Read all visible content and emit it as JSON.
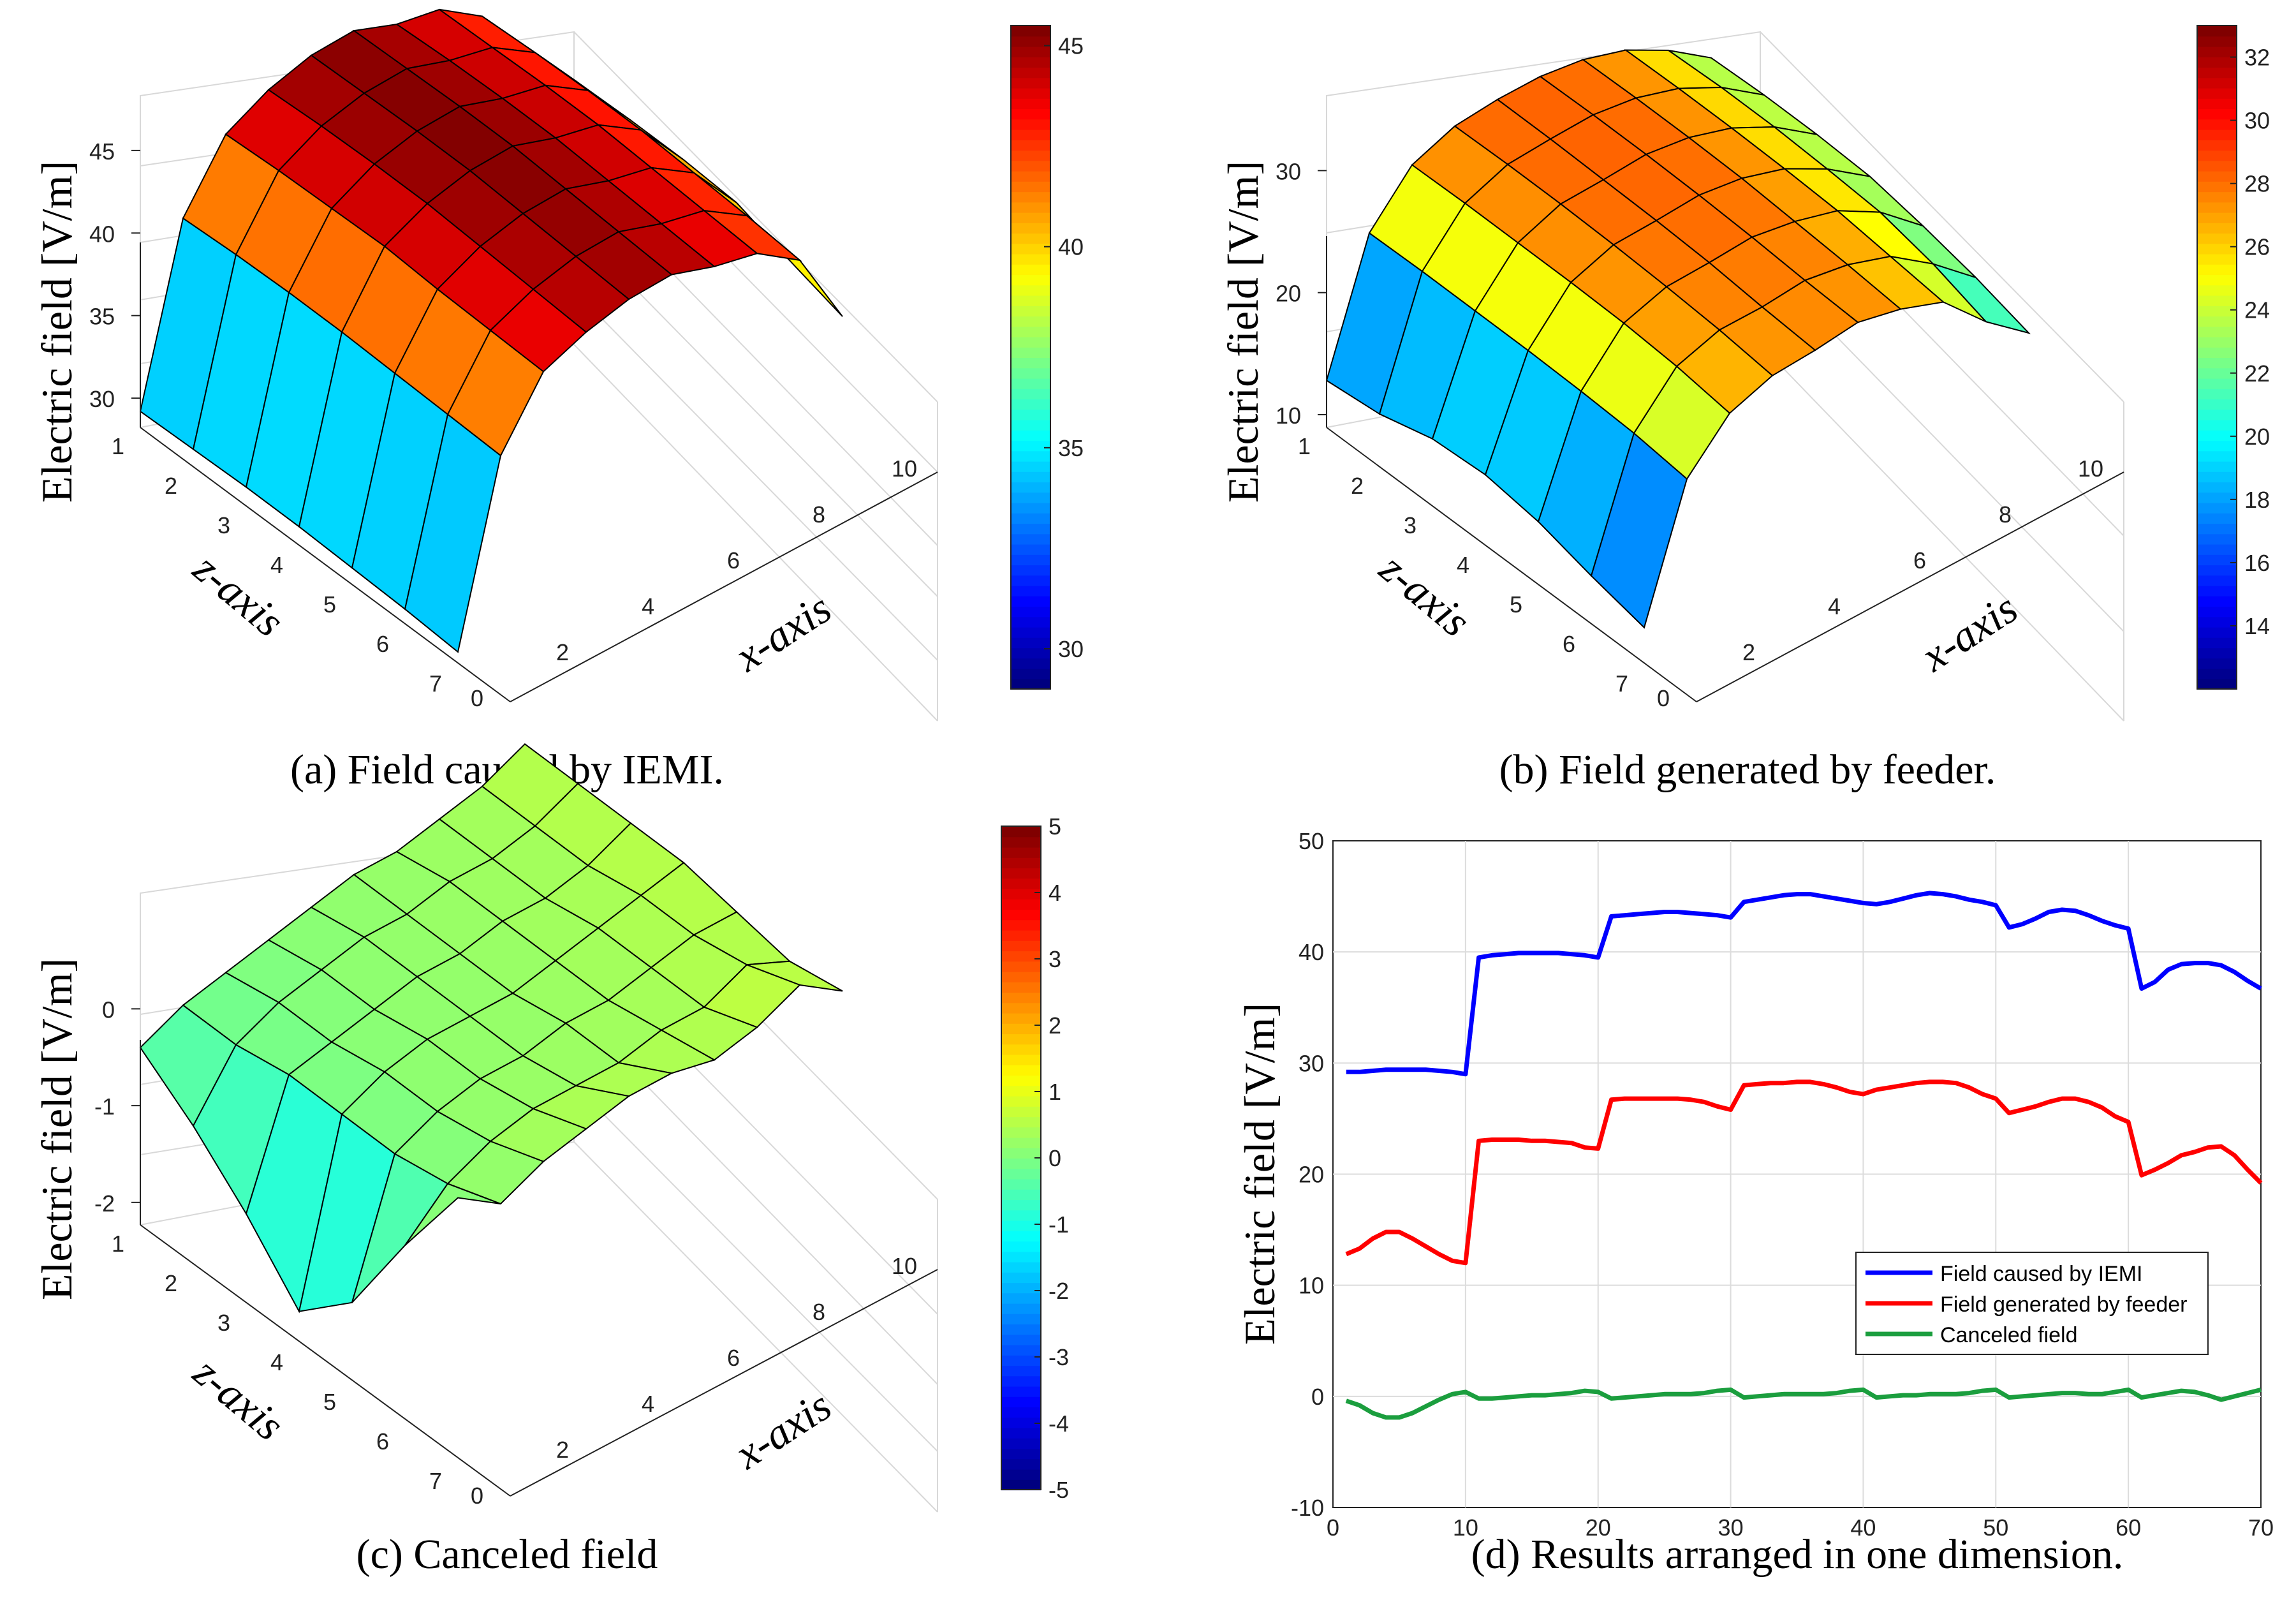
{
  "charts": [
    {
      "type": "surface",
      "title": "(a) Field caused by IEMI.",
      "zlabel": "Electric field [V/m]",
      "xlabel": "x-axis",
      "ylabel": "z-axis",
      "x_ticks": [
        "0",
        "2",
        "4",
        "6",
        "8",
        "10"
      ],
      "y_ticks": [
        "1",
        "2",
        "3",
        "4",
        "5",
        "6",
        "7"
      ],
      "z_ticks": [
        "30",
        "35",
        "40",
        "45"
      ],
      "zlim": [
        29,
        46
      ],
      "colorbar": {
        "min": 29,
        "max": 45.5,
        "colormap": "jet",
        "ticks": [
          "30",
          "35",
          "40",
          "45"
        ]
      },
      "grid": {
        "x": [
          1,
          2,
          3,
          4,
          5,
          6,
          7,
          8,
          9,
          10
        ],
        "z": [
          1,
          2,
          3,
          4,
          5,
          6,
          7
        ],
        "values": [
          [
            29.2,
            39.5,
            43.2,
            44.5,
            45.2,
            45.3,
            44.3,
            43.8,
            42.0,
            38.8
          ],
          [
            29.3,
            39.7,
            43.4,
            44.7,
            45.3,
            45.4,
            44.5,
            43.9,
            42.2,
            39.0
          ],
          [
            29.4,
            39.8,
            43.5,
            44.8,
            45.4,
            45.5,
            44.6,
            44.0,
            42.3,
            39.1
          ],
          [
            29.4,
            39.8,
            43.6,
            44.8,
            45.4,
            45.5,
            44.6,
            44.0,
            42.3,
            39.1
          ],
          [
            29.3,
            39.7,
            43.4,
            44.6,
            45.2,
            45.3,
            44.4,
            43.8,
            42.1,
            38.9
          ],
          [
            29.2,
            39.6,
            43.3,
            44.4,
            45.0,
            45.1,
            44.2,
            43.6,
            41.9,
            37.8
          ],
          [
            29.0,
            39.5,
            43.2,
            44.2,
            44.8,
            44.9,
            44.0,
            43.4,
            41.6,
            36.8
          ]
        ]
      }
    },
    {
      "type": "surface",
      "title": "(b) Field generated by feeder.",
      "zlabel": "Electric field [V/m]",
      "xlabel": "x-axis",
      "ylabel": "z-axis",
      "x_ticks": [
        "0",
        "2",
        "4",
        "6",
        "8",
        "10"
      ],
      "y_ticks": [
        "1",
        "2",
        "3",
        "4",
        "5",
        "6",
        "7"
      ],
      "z_ticks": [
        "10",
        "20",
        "30"
      ],
      "zlim": [
        10,
        33
      ],
      "colorbar": {
        "min": 12,
        "max": 33,
        "colormap": "jet",
        "ticks": [
          "14",
          "16",
          "18",
          "20",
          "22",
          "24",
          "26",
          "28",
          "30",
          "32"
        ]
      },
      "grid": {
        "x": [
          1,
          2,
          3,
          4,
          5,
          6,
          7,
          8,
          9,
          10
        ],
        "z": [
          1,
          2,
          3,
          4,
          5,
          6,
          7
        ],
        "values": [
          [
            12.8,
            23.0,
            26.7,
            28.0,
            28.3,
            28.3,
            27.8,
            26.7,
            24.8,
            22.3
          ],
          [
            13.3,
            23.1,
            26.8,
            28.1,
            28.3,
            28.4,
            27.9,
            26.8,
            25.0,
            22.5
          ],
          [
            14.5,
            23.1,
            26.8,
            28.1,
            28.2,
            28.4,
            27.9,
            26.8,
            25.0,
            22.5
          ],
          [
            14.8,
            23.1,
            26.8,
            28.0,
            28.1,
            28.3,
            27.8,
            26.7,
            24.8,
            22.3
          ],
          [
            14.2,
            23.0,
            26.7,
            27.8,
            27.9,
            28.1,
            27.5,
            26.5,
            24.5,
            21.5
          ],
          [
            13.0,
            22.8,
            26.4,
            27.5,
            27.5,
            27.8,
            27.2,
            26.0,
            23.5,
            20.5
          ],
          [
            12.0,
            22.3,
            25.8,
            27.0,
            27.2,
            27.6,
            26.8,
            25.5,
            22.0,
            19.2
          ]
        ]
      }
    },
    {
      "type": "surface",
      "title": "(c) Canceled field",
      "zlabel": "Electric field [V/m]",
      "xlabel": "x-axis",
      "ylabel": "z-axis",
      "x_ticks": [
        "0",
        "2",
        "4",
        "6",
        "8",
        "10"
      ],
      "y_ticks": [
        "1",
        "2",
        "3",
        "4",
        "5",
        "6",
        "7"
      ],
      "z_ticks": [
        "-2",
        "-1",
        "0"
      ],
      "zlim": [
        -2.1,
        0.8
      ],
      "colorbar": {
        "min": -5,
        "max": 5,
        "colormap": "jet",
        "ticks": [
          "-5",
          "-4",
          "-3",
          "-2",
          "-1",
          "0",
          "1",
          "2",
          "3",
          "4",
          "5"
        ]
      },
      "grid": {
        "x": [
          1,
          2,
          3,
          4,
          5,
          6,
          7,
          8,
          9,
          10
        ],
        "z": [
          1,
          2,
          3,
          4,
          5,
          6,
          7
        ],
        "values": [
          [
            -0.4,
            -0.2,
            -0.1,
            0.0,
            0.1,
            0.2,
            0.2,
            0.3,
            0.4,
            0.6
          ],
          [
            -0.8,
            -0.2,
            0.0,
            0.1,
            0.2,
            0.2,
            0.3,
            0.3,
            0.4,
            0.6
          ],
          [
            -1.3,
            -0.1,
            0.0,
            0.1,
            0.2,
            0.2,
            0.3,
            0.3,
            0.4,
            0.6
          ],
          [
            -1.9,
            -0.1,
            0.1,
            0.2,
            0.2,
            0.2,
            0.3,
            0.4,
            0.5,
            0.6
          ],
          [
            -1.4,
            -0.1,
            0.1,
            0.2,
            0.2,
            0.3,
            0.3,
            0.4,
            0.5,
            0.5
          ],
          [
            -0.4,
            0.0,
            0.2,
            0.3,
            0.3,
            0.3,
            0.4,
            0.4,
            0.6,
            0.4
          ],
          [
            0.5,
            0.2,
            0.4,
            0.5,
            0.6,
            0.6,
            0.5,
            0.6,
            0.8,
            0.5
          ]
        ]
      }
    },
    {
      "type": "line",
      "title": "(d) Results arranged in one dimension.",
      "xlabel": "",
      "ylabel": "Electric field [V/m]",
      "xlim": [
        0,
        70
      ],
      "ylim": [
        -10,
        50
      ],
      "x_ticks": [
        "0",
        "10",
        "20",
        "30",
        "40",
        "50",
        "60",
        "70"
      ],
      "y_ticks": [
        "-10",
        "0",
        "10",
        "20",
        "30",
        "40",
        "50"
      ],
      "grid": true,
      "legend_position": "lower-right",
      "series": [
        {
          "name": "Field caused by IEMI",
          "color": "#0000ff",
          "x": [
            1,
            2,
            3,
            4,
            5,
            6,
            7,
            8,
            9,
            10,
            11,
            12,
            13,
            14,
            15,
            16,
            17,
            18,
            19,
            20,
            21,
            22,
            23,
            24,
            25,
            26,
            27,
            28,
            29,
            30,
            31,
            32,
            33,
            34,
            35,
            36,
            37,
            38,
            39,
            40,
            41,
            42,
            43,
            44,
            45,
            46,
            47,
            48,
            49,
            50,
            51,
            52,
            53,
            54,
            55,
            56,
            57,
            58,
            59,
            60,
            61,
            62,
            63,
            64,
            65,
            66,
            67,
            68,
            69,
            70
          ],
          "values": [
            29.2,
            29.2,
            29.3,
            29.4,
            29.4,
            29.4,
            29.4,
            29.3,
            29.2,
            29.0,
            39.5,
            39.7,
            39.8,
            39.9,
            39.9,
            39.9,
            39.9,
            39.8,
            39.7,
            39.5,
            43.2,
            43.3,
            43.4,
            43.5,
            43.6,
            43.6,
            43.5,
            43.4,
            43.3,
            43.1,
            44.5,
            44.7,
            44.9,
            45.1,
            45.2,
            45.2,
            45.0,
            44.8,
            44.6,
            44.4,
            44.3,
            44.5,
            44.8,
            45.1,
            45.3,
            45.2,
            45.0,
            44.7,
            44.5,
            44.2,
            42.2,
            42.5,
            43.0,
            43.6,
            43.8,
            43.7,
            43.3,
            42.8,
            42.4,
            42.1,
            36.7,
            37.3,
            38.4,
            38.9,
            39.0,
            39.0,
            38.8,
            38.2,
            37.4,
            36.7
          ]
        },
        {
          "name": "Field generated by feeder",
          "color": "#ff0000",
          "x": [
            1,
            2,
            3,
            4,
            5,
            6,
            7,
            8,
            9,
            10,
            11,
            12,
            13,
            14,
            15,
            16,
            17,
            18,
            19,
            20,
            21,
            22,
            23,
            24,
            25,
            26,
            27,
            28,
            29,
            30,
            31,
            32,
            33,
            34,
            35,
            36,
            37,
            38,
            39,
            40,
            41,
            42,
            43,
            44,
            45,
            46,
            47,
            48,
            49,
            50,
            51,
            52,
            53,
            54,
            55,
            56,
            57,
            58,
            59,
            60,
            61,
            62,
            63,
            64,
            65,
            66,
            67,
            68,
            69,
            70
          ],
          "values": [
            12.8,
            13.3,
            14.2,
            14.8,
            14.8,
            14.2,
            13.5,
            12.8,
            12.2,
            12.0,
            23.0,
            23.1,
            23.1,
            23.1,
            23.0,
            23.0,
            22.9,
            22.8,
            22.4,
            22.3,
            26.7,
            26.8,
            26.8,
            26.8,
            26.8,
            26.8,
            26.7,
            26.5,
            26.1,
            25.8,
            28.0,
            28.1,
            28.2,
            28.2,
            28.3,
            28.3,
            28.1,
            27.8,
            27.4,
            27.2,
            27.6,
            27.8,
            28.0,
            28.2,
            28.3,
            28.3,
            28.2,
            27.8,
            27.2,
            26.8,
            25.5,
            25.8,
            26.1,
            26.5,
            26.8,
            26.8,
            26.5,
            26.0,
            25.2,
            24.7,
            19.9,
            20.4,
            21.0,
            21.7,
            22.0,
            22.4,
            22.5,
            21.7,
            20.4,
            19.2
          ]
        },
        {
          "name": "Canceled field",
          "color": "#1b9e3e",
          "x": [
            1,
            2,
            3,
            4,
            5,
            6,
            7,
            8,
            9,
            10,
            11,
            12,
            13,
            14,
            15,
            16,
            17,
            18,
            19,
            20,
            21,
            22,
            23,
            24,
            25,
            26,
            27,
            28,
            29,
            30,
            31,
            32,
            33,
            34,
            35,
            36,
            37,
            38,
            39,
            40,
            41,
            42,
            43,
            44,
            45,
            46,
            47,
            48,
            49,
            50,
            51,
            52,
            53,
            54,
            55,
            56,
            57,
            58,
            59,
            60,
            61,
            62,
            63,
            64,
            65,
            66,
            67,
            68,
            69,
            70
          ],
          "values": [
            -0.4,
            -0.8,
            -1.5,
            -1.9,
            -1.9,
            -1.5,
            -0.9,
            -0.3,
            0.2,
            0.4,
            -0.2,
            -0.2,
            -0.1,
            0.0,
            0.1,
            0.1,
            0.2,
            0.3,
            0.5,
            0.4,
            -0.2,
            -0.1,
            0.0,
            0.1,
            0.2,
            0.2,
            0.2,
            0.3,
            0.5,
            0.6,
            -0.1,
            0.0,
            0.1,
            0.2,
            0.2,
            0.2,
            0.2,
            0.3,
            0.5,
            0.6,
            -0.1,
            0.0,
            0.1,
            0.1,
            0.2,
            0.2,
            0.2,
            0.3,
            0.5,
            0.6,
            -0.1,
            0.0,
            0.1,
            0.2,
            0.3,
            0.3,
            0.2,
            0.2,
            0.4,
            0.6,
            -0.1,
            0.1,
            0.3,
            0.5,
            0.4,
            0.1,
            -0.3,
            0.0,
            0.3,
            0.6
          ]
        }
      ]
    }
  ]
}
